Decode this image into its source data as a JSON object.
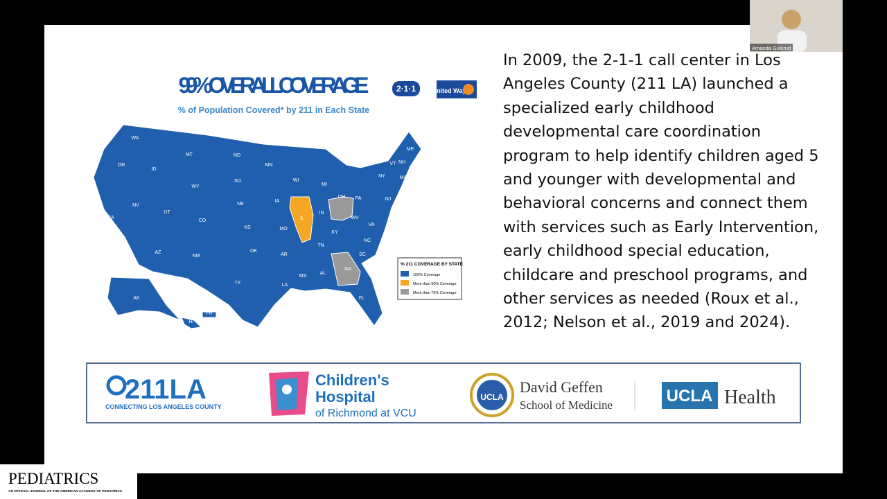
{
  "participant": {
    "name": "Amanda Gulsrud"
  },
  "slide": {
    "map": {
      "title": "99% OVERALL COVERAGE",
      "subtitle": "% of Population Covered* by 211 in Each State",
      "logos": {
        "two_one_one": "2·1·1",
        "united_way": "United Way"
      },
      "legend": {
        "title": "% 211 COVERAGE BY STATE",
        "items": [
          "100% Coverage",
          "More than 90% Coverage",
          "More than 75% Coverage"
        ]
      },
      "state_labels": [
        "WA",
        "OR",
        "CA",
        "NV",
        "ID",
        "MT",
        "WY",
        "UT",
        "AZ",
        "CO",
        "NM",
        "ND",
        "SD",
        "NE",
        "KS",
        "OK",
        "TX",
        "MN",
        "IA",
        "MO",
        "AR",
        "LA",
        "WI",
        "IL",
        "MI",
        "IN",
        "OH",
        "KY",
        "TN",
        "MS",
        "AL",
        "GA",
        "FL",
        "SC",
        "NC",
        "VA",
        "WV",
        "PA",
        "NY",
        "VT",
        "NH",
        "ME",
        "MA",
        "RI",
        "NJ",
        "DE",
        "AK",
        "HI",
        "PR"
      ]
    },
    "paragraph": "In 2009, the 2-1-1 call center in Los Angeles County (211 LA) launched a specialized early childhood developmental care coordination program to help identify children aged 5 and younger with developmental and behavioral concerns and connect them with services such as Early Intervention, early childhood special education, childcare and preschool programs, and other services as needed (Roux et al., 2012; Nelson et al., 2019 and 2024).",
    "partners": {
      "la211": {
        "name": "211LA",
        "tagline": "CONNECTING LOS ANGELES COUNTY"
      },
      "chor": {
        "line1": "Children's",
        "line2": "Hospital",
        "line3": "of Richmond at VCU"
      },
      "geffen": {
        "seal": "UCLA",
        "line1": "David Geffen",
        "line2": "School of Medicine"
      },
      "ucla_health": {
        "ucla": "UCLA",
        "health": "Health"
      }
    }
  },
  "journal": {
    "name": "PEDIATRICS",
    "tagline": "AN OFFICIAL JOURNAL OF THE AMERICAN ACADEMY OF PEDIATRICS"
  }
}
